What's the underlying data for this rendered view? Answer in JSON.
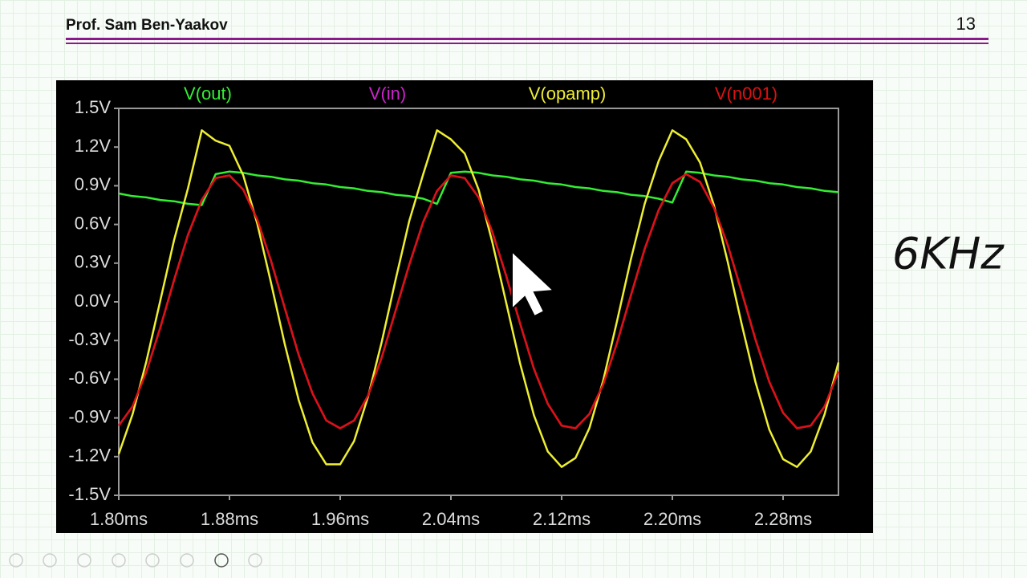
{
  "header": {
    "author": "Prof. Sam Ben-Yaakov",
    "page_number": "13"
  },
  "annotation": "6KHz",
  "chart_data": {
    "type": "line",
    "x": [
      1.8,
      1.81,
      1.82,
      1.83,
      1.84,
      1.85,
      1.86,
      1.87,
      1.88,
      1.89,
      1.9,
      1.91,
      1.92,
      1.93,
      1.94,
      1.95,
      1.96,
      1.97,
      1.98,
      1.99,
      2.0,
      2.01,
      2.02,
      2.03,
      2.04,
      2.05,
      2.06,
      2.07,
      2.08,
      2.09,
      2.1,
      2.11,
      2.12,
      2.13,
      2.14,
      2.15,
      2.16,
      2.17,
      2.18,
      2.19,
      2.2,
      2.21,
      2.22,
      2.23,
      2.24,
      2.25,
      2.26,
      2.27,
      2.28,
      2.29,
      2.3,
      2.31,
      2.32
    ],
    "series": [
      {
        "name": "V(out)",
        "color": "#33ee33",
        "values": [
          0.84,
          0.82,
          0.81,
          0.79,
          0.78,
          0.76,
          0.75,
          0.99,
          1.01,
          1.0,
          0.98,
          0.97,
          0.95,
          0.94,
          0.92,
          0.91,
          0.89,
          0.88,
          0.86,
          0.85,
          0.83,
          0.82,
          0.8,
          0.76,
          1.0,
          1.01,
          1.0,
          0.98,
          0.97,
          0.95,
          0.94,
          0.92,
          0.91,
          0.89,
          0.88,
          0.86,
          0.85,
          0.83,
          0.82,
          0.8,
          0.77,
          1.01,
          1.0,
          0.98,
          0.97,
          0.95,
          0.94,
          0.92,
          0.91,
          0.89,
          0.88,
          0.86,
          0.85
        ]
      },
      {
        "name": "V(in)",
        "color": "#cc22cc",
        "values": [
          -0.96,
          -0.81,
          -0.54,
          -0.2,
          0.17,
          0.52,
          0.79,
          0.96,
          0.98,
          0.87,
          0.64,
          0.32,
          -0.05,
          -0.41,
          -0.71,
          -0.92,
          -0.98,
          -0.92,
          -0.73,
          -0.43,
          -0.07,
          0.29,
          0.62,
          0.86,
          0.98,
          0.96,
          0.81,
          0.54,
          0.2,
          -0.17,
          -0.52,
          -0.79,
          -0.96,
          -0.98,
          -0.87,
          -0.64,
          -0.32,
          0.05,
          0.41,
          0.71,
          0.92,
          0.99,
          0.93,
          0.73,
          0.44,
          0.08,
          -0.29,
          -0.62,
          -0.86,
          -0.98,
          -0.96,
          -0.81,
          -0.54
        ]
      },
      {
        "name": "V(opamp)",
        "color": "#eeee33",
        "values": [
          -1.18,
          -0.87,
          -0.46,
          0.01,
          0.48,
          0.88,
          1.33,
          1.25,
          1.21,
          0.98,
          0.61,
          0.15,
          -0.33,
          -0.76,
          -1.09,
          -1.26,
          -1.26,
          -1.08,
          -0.74,
          -0.31,
          0.17,
          0.63,
          0.99,
          1.33,
          1.26,
          1.15,
          0.87,
          0.46,
          -0.01,
          -0.48,
          -0.88,
          -1.16,
          -1.28,
          -1.21,
          -0.98,
          -0.61,
          -0.15,
          0.33,
          0.76,
          1.09,
          1.33,
          1.26,
          1.08,
          0.75,
          0.31,
          -0.17,
          -0.62,
          -0.99,
          -1.22,
          -1.28,
          -1.16,
          -0.87,
          -0.47
        ]
      },
      {
        "name": "V(n001)",
        "color": "#dd1111",
        "values": [
          -0.96,
          -0.81,
          -0.54,
          -0.2,
          0.17,
          0.52,
          0.79,
          0.96,
          0.98,
          0.87,
          0.64,
          0.32,
          -0.05,
          -0.41,
          -0.71,
          -0.92,
          -0.98,
          -0.92,
          -0.73,
          -0.43,
          -0.07,
          0.29,
          0.62,
          0.86,
          0.98,
          0.96,
          0.81,
          0.54,
          0.2,
          -0.17,
          -0.52,
          -0.79,
          -0.96,
          -0.98,
          -0.87,
          -0.64,
          -0.32,
          0.05,
          0.41,
          0.71,
          0.92,
          0.99,
          0.93,
          0.73,
          0.44,
          0.08,
          -0.29,
          -0.62,
          -0.86,
          -0.98,
          -0.96,
          -0.81,
          -0.54
        ]
      }
    ],
    "xlim": [
      1.8,
      2.32
    ],
    "xticks": [
      {
        "value": 1.8,
        "label": "1.80ms"
      },
      {
        "value": 1.88,
        "label": "1.88ms"
      },
      {
        "value": 1.96,
        "label": "1.96ms"
      },
      {
        "value": 2.04,
        "label": "2.04ms"
      },
      {
        "value": 2.12,
        "label": "2.12ms"
      },
      {
        "value": 2.2,
        "label": "2.20ms"
      },
      {
        "value": 2.28,
        "label": "2.28ms"
      }
    ],
    "ylim": [
      -1.5,
      1.5
    ],
    "yticks": [
      {
        "value": -1.5,
        "label": "-1.5V"
      },
      {
        "value": -1.2,
        "label": "-1.2V"
      },
      {
        "value": -0.9,
        "label": "-0.9V"
      },
      {
        "value": -0.6,
        "label": "-0.6V"
      },
      {
        "value": -0.3,
        "label": "-0.3V"
      },
      {
        "value": 0.0,
        "label": "0.0V"
      },
      {
        "value": 0.3,
        "label": "0.3V"
      },
      {
        "value": 0.6,
        "label": "0.6V"
      },
      {
        "value": 0.9,
        "label": "0.9V"
      },
      {
        "value": 1.2,
        "label": "1.2V"
      },
      {
        "value": 1.5,
        "label": "1.5V"
      }
    ]
  }
}
